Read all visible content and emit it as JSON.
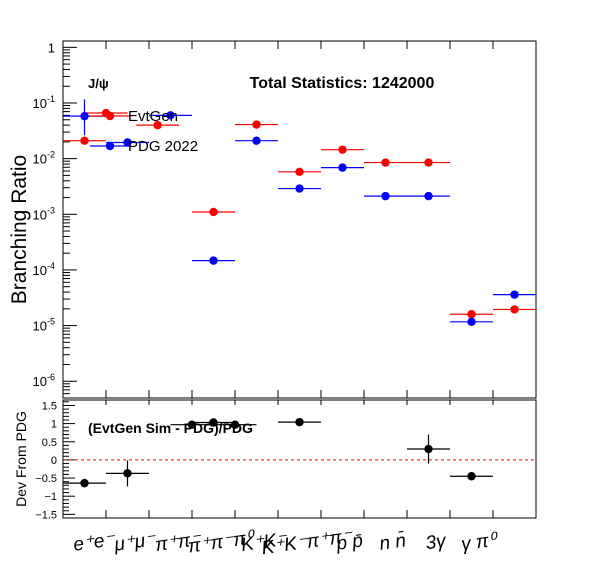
{
  "chart_data": [
    {
      "type": "scatter",
      "title": "Total Statistics: 1242000",
      "annotation": "J/ψ",
      "ylabel": "Branching Ratio",
      "yscale": "log",
      "ylim": [
        5e-07,
        1.3
      ],
      "ytick_labels": [
        {
          "base": "10",
          "exp": "-6",
          "value": 1e-06
        },
        {
          "base": "10",
          "exp": "-5",
          "value": 1e-05
        },
        {
          "base": "10",
          "exp": "-4",
          "value": 0.0001
        },
        {
          "base": "10",
          "exp": "-3",
          "value": 0.001
        },
        {
          "base": "10",
          "exp": "-2",
          "value": 0.01
        },
        {
          "base": "10",
          "exp": "-1",
          "value": 0.1
        },
        {
          "base": "1",
          "exp": "",
          "value": 1
        }
      ],
      "categories": [
        "e⁺e⁻",
        "μ⁺μ⁻",
        "π⁺π⁻",
        "π⁺π⁻π⁰",
        "K⁺K⁻",
        "K⁺K⁻π⁺π⁻",
        "p p̄",
        "n n̄",
        "3γ",
        "γ π⁰"
      ],
      "legend": [
        {
          "name": "EvtGen",
          "color": "#ff0000"
        },
        {
          "name": "PDG 2022",
          "color": "#0000ff"
        }
      ],
      "legend_position": "top-left",
      "series": [
        {
          "name": "EvtGen",
          "color": "#ff0000",
          "points": [
            {
              "x": 0.5,
              "y": 0.021
            },
            {
              "x": 1.0,
              "y": 0.066
            },
            {
              "x": 2.2,
              "y": 0.04
            },
            {
              "x": 3.5,
              "y": 0.0011
            },
            {
              "x": 4.5,
              "y": 0.041
            },
            {
              "x": 5.5,
              "y": 0.0058
            },
            {
              "x": 6.5,
              "y": 0.0145
            },
            {
              "x": 7.5,
              "y": 0.0085
            },
            {
              "x": 8.5,
              "y": 0.0085
            },
            {
              "x": 9.5,
              "y": 1.6e-05
            },
            {
              "x": 10.5,
              "y": 1.95e-05
            }
          ]
        },
        {
          "name": "PDG 2022",
          "color": "#0000ff",
          "points": [
            {
              "x": 0.5,
              "y": 0.058
            },
            {
              "x": 1.5,
              "y": 0.0195
            },
            {
              "x": 2.5,
              "y": 0.06
            },
            {
              "x": 3.5,
              "y": 0.000147
            },
            {
              "x": 4.5,
              "y": 0.021
            },
            {
              "x": 5.5,
              "y": 0.0029
            },
            {
              "x": 6.5,
              "y": 0.0069
            },
            {
              "x": 7.5,
              "y": 0.00212
            },
            {
              "x": 8.5,
              "y": 0.00212
            },
            {
              "x": 9.5,
              "y": 1.17e-05
            },
            {
              "x": 10.5,
              "y": 3.6e-05
            }
          ]
        }
      ]
    },
    {
      "type": "scatter",
      "annotation": "(EvtGen Sim - PDG)/PDG",
      "ylabel": "Dev From PDG",
      "ylim": [
        -1.6,
        1.65
      ],
      "yticks": [
        -1.5,
        -1,
        -0.5,
        0,
        0.5,
        1,
        1.5
      ],
      "ytick_labels": [
        "−1.5",
        "−1",
        "−0.5",
        "0",
        "0.5",
        "1",
        "1.5"
      ],
      "reference_line": {
        "y": 0,
        "color": "#ff0000",
        "style": "dashed"
      },
      "series": [
        {
          "name": "",
          "color": "#000000",
          "points": [
            {
              "x": 0.5,
              "y": -0.64,
              "err": 0.12
            },
            {
              "x": 1.5,
              "y": -0.37,
              "err": 0.36
            },
            {
              "x": 3.0,
              "y": 0.97,
              "err": 0.0
            },
            {
              "x": 3.5,
              "y": 1.03,
              "err": 0.0
            },
            {
              "x": 4.0,
              "y": 0.97,
              "err": 0.0
            },
            {
              "x": 5.5,
              "y": 1.04,
              "err": 0.05
            },
            {
              "x": 8.5,
              "y": 0.3,
              "err": 0.4
            },
            {
              "x": 9.5,
              "y": -0.45,
              "err": 0.0
            }
          ]
        }
      ]
    }
  ]
}
